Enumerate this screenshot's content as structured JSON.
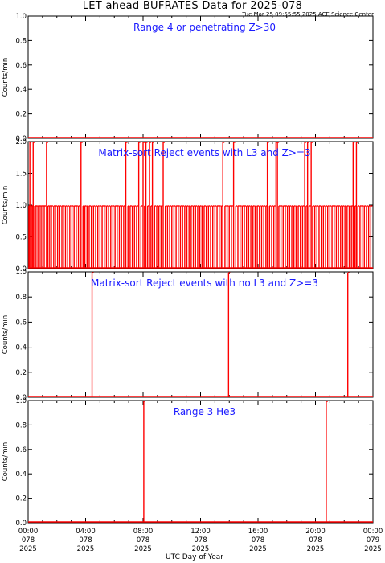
{
  "title": "LET ahead BUFRATES Data for 2025-078",
  "subtitle": "Tue Mar 25 09:55:55 2025 ACE Science Center",
  "xlabel": "UTC Day of Year",
  "colors": {
    "axes": "#000000",
    "data": "#ff0000",
    "panel_label": "#1a1aff"
  },
  "x_ticks": [
    {
      "time": "00:00",
      "doy": "078",
      "year": "2025"
    },
    {
      "time": "04:00",
      "doy": "078",
      "year": "2025"
    },
    {
      "time": "08:00",
      "doy": "078",
      "year": "2025"
    },
    {
      "time": "12:00",
      "doy": "078",
      "year": "2025"
    },
    {
      "time": "16:00",
      "doy": "078",
      "year": "2025"
    },
    {
      "time": "20:00",
      "doy": "078",
      "year": "2025"
    },
    {
      "time": "00:00",
      "doy": "079",
      "year": "2025"
    }
  ],
  "chart_data": [
    {
      "type": "line",
      "title": "Range 4 or  penetrating Z>30",
      "ylabel": "Counts/min",
      "xlim_hours": [
        0,
        24
      ],
      "ylim": [
        0,
        1.0
      ],
      "yticks": [
        0.0,
        0.2,
        0.4,
        0.6,
        0.8,
        1.0
      ],
      "ytick_labels": [
        "0.0",
        "0.2",
        "0.4",
        "0.6",
        "0.8",
        "1.0"
      ],
      "series": [
        {
          "baseline": 0,
          "spikes": []
        }
      ]
    },
    {
      "type": "line",
      "title": "Matrix-sort Reject events with L3 and Z>=3",
      "ylabel": "Counts/min",
      "xlim_hours": [
        0,
        24
      ],
      "ylim": [
        0,
        2.0
      ],
      "yticks": [
        0.0,
        0.5,
        1.0,
        1.5,
        2.0
      ],
      "ytick_labels": [
        "0.0",
        "0.5",
        "1.0",
        "1.5",
        "2.0"
      ],
      "series": [
        {
          "baseline": 0,
          "spikes": [
            [
              0.05,
              1
            ],
            [
              0.12,
              2
            ],
            [
              0.2,
              1
            ],
            [
              0.28,
              1
            ],
            [
              0.35,
              2
            ],
            [
              0.45,
              1
            ],
            [
              0.55,
              1
            ],
            [
              0.68,
              1
            ],
            [
              0.78,
              1
            ],
            [
              0.9,
              1
            ],
            [
              1.02,
              1
            ],
            [
              1.12,
              1
            ],
            [
              1.28,
              2
            ],
            [
              1.38,
              1
            ],
            [
              1.5,
              1
            ],
            [
              1.62,
              1
            ],
            [
              1.78,
              1
            ],
            [
              1.9,
              1
            ],
            [
              2.05,
              1
            ],
            [
              2.2,
              1
            ],
            [
              2.35,
              1
            ],
            [
              2.45,
              1
            ],
            [
              2.6,
              1
            ],
            [
              2.75,
              1
            ],
            [
              2.9,
              1
            ],
            [
              3.05,
              1
            ],
            [
              3.2,
              1
            ],
            [
              3.35,
              1
            ],
            [
              3.5,
              1
            ],
            [
              3.68,
              2
            ],
            [
              3.82,
              1
            ],
            [
              3.95,
              1
            ],
            [
              4.1,
              1
            ],
            [
              4.25,
              1
            ],
            [
              4.4,
              1
            ],
            [
              4.55,
              1
            ],
            [
              4.7,
              1
            ],
            [
              4.85,
              1
            ],
            [
              5.0,
              1
            ],
            [
              5.15,
              1
            ],
            [
              5.3,
              1
            ],
            [
              5.45,
              1
            ],
            [
              5.6,
              1
            ],
            [
              5.75,
              1
            ],
            [
              5.9,
              1
            ],
            [
              6.05,
              1
            ],
            [
              6.2,
              1
            ],
            [
              6.35,
              1
            ],
            [
              6.5,
              1
            ],
            [
              6.65,
              1
            ],
            [
              6.8,
              2
            ],
            [
              6.95,
              1
            ],
            [
              7.1,
              1
            ],
            [
              7.25,
              1
            ],
            [
              7.4,
              1
            ],
            [
              7.55,
              1
            ],
            [
              7.7,
              2
            ],
            [
              7.85,
              1
            ],
            [
              8.0,
              2
            ],
            [
              8.1,
              1
            ],
            [
              8.2,
              2
            ],
            [
              8.32,
              1
            ],
            [
              8.45,
              2
            ],
            [
              8.55,
              1
            ],
            [
              8.65,
              2
            ],
            [
              8.8,
              1
            ],
            [
              8.95,
              1
            ],
            [
              9.1,
              1
            ],
            [
              9.25,
              1
            ],
            [
              9.4,
              2
            ],
            [
              9.55,
              1
            ],
            [
              9.7,
              1
            ],
            [
              9.85,
              1
            ],
            [
              10.0,
              1
            ],
            [
              10.15,
              1
            ],
            [
              10.3,
              1
            ],
            [
              10.45,
              1
            ],
            [
              10.6,
              1
            ],
            [
              10.75,
              1
            ],
            [
              10.9,
              1
            ],
            [
              11.05,
              1
            ],
            [
              11.2,
              1
            ],
            [
              11.35,
              1
            ],
            [
              11.5,
              1
            ],
            [
              11.65,
              1
            ],
            [
              11.8,
              1
            ],
            [
              11.95,
              1
            ],
            [
              12.1,
              1
            ],
            [
              12.25,
              1
            ],
            [
              12.4,
              1
            ],
            [
              12.55,
              1
            ],
            [
              12.7,
              1
            ],
            [
              12.85,
              1
            ],
            [
              13.0,
              1
            ],
            [
              13.15,
              1
            ],
            [
              13.3,
              1
            ],
            [
              13.45,
              1
            ],
            [
              13.55,
              2
            ],
            [
              13.7,
              1
            ],
            [
              13.85,
              1
            ],
            [
              14.0,
              1
            ],
            [
              14.15,
              1
            ],
            [
              14.3,
              2
            ],
            [
              14.45,
              1
            ],
            [
              14.6,
              1
            ],
            [
              14.75,
              1
            ],
            [
              14.9,
              1
            ],
            [
              15.05,
              1
            ],
            [
              15.2,
              1
            ],
            [
              15.35,
              1
            ],
            [
              15.5,
              1
            ],
            [
              15.65,
              1
            ],
            [
              15.8,
              1
            ],
            [
              15.95,
              1
            ],
            [
              16.1,
              1
            ],
            [
              16.25,
              1
            ],
            [
              16.4,
              1
            ],
            [
              16.55,
              1
            ],
            [
              16.65,
              2
            ],
            [
              16.8,
              1
            ],
            [
              16.95,
              1
            ],
            [
              17.1,
              1
            ],
            [
              17.25,
              2
            ],
            [
              17.35,
              2
            ],
            [
              17.45,
              1
            ],
            [
              17.6,
              1
            ],
            [
              17.75,
              1
            ],
            [
              17.9,
              1
            ],
            [
              18.05,
              1
            ],
            [
              18.2,
              1
            ],
            [
              18.35,
              1
            ],
            [
              18.5,
              1
            ],
            [
              18.65,
              1
            ],
            [
              18.8,
              1
            ],
            [
              18.95,
              1
            ],
            [
              19.1,
              1
            ],
            [
              19.25,
              2
            ],
            [
              19.35,
              1
            ],
            [
              19.45,
              2
            ],
            [
              19.55,
              1
            ],
            [
              19.7,
              2
            ],
            [
              19.8,
              1
            ],
            [
              19.95,
              1
            ],
            [
              20.1,
              1
            ],
            [
              20.25,
              1
            ],
            [
              20.4,
              1
            ],
            [
              20.55,
              1
            ],
            [
              20.7,
              1
            ],
            [
              20.85,
              1
            ],
            [
              21.0,
              1
            ],
            [
              21.15,
              1
            ],
            [
              21.3,
              1
            ],
            [
              21.45,
              1
            ],
            [
              21.6,
              1
            ],
            [
              21.75,
              1
            ],
            [
              21.9,
              1
            ],
            [
              22.05,
              1
            ],
            [
              22.2,
              1
            ],
            [
              22.35,
              1
            ],
            [
              22.5,
              1
            ],
            [
              22.62,
              2
            ],
            [
              22.75,
              1
            ],
            [
              22.85,
              2
            ],
            [
              22.95,
              1
            ],
            [
              23.1,
              1
            ],
            [
              23.25,
              1
            ],
            [
              23.4,
              1
            ],
            [
              23.55,
              1
            ],
            [
              23.7,
              1
            ],
            [
              23.85,
              1
            ]
          ]
        }
      ]
    },
    {
      "type": "line",
      "title": "Matrix-sort Reject events with no L3 and Z>=3",
      "ylabel": "Counts/min",
      "xlim_hours": [
        0,
        24
      ],
      "ylim": [
        0,
        1.0
      ],
      "yticks": [
        0.0,
        0.2,
        0.4,
        0.6,
        0.8,
        1.0
      ],
      "ytick_labels": [
        "0.0",
        "0.2",
        "0.4",
        "0.6",
        "0.8",
        "1.0"
      ],
      "series": [
        {
          "baseline": 0,
          "spikes": [
            [
              4.45,
              1
            ],
            [
              13.95,
              1
            ],
            [
              22.25,
              1
            ]
          ]
        }
      ]
    },
    {
      "type": "line",
      "title": "Range 3 He3",
      "ylabel": "Counts/min",
      "xlim_hours": [
        0,
        24
      ],
      "ylim": [
        0,
        1.0
      ],
      "yticks": [
        0.0,
        0.2,
        0.4,
        0.6,
        0.8,
        1.0
      ],
      "ytick_labels": [
        "0.0",
        "0.2",
        "0.4",
        "0.6",
        "0.8",
        "1.0"
      ],
      "series": [
        {
          "baseline": 0,
          "spikes": [
            [
              8.05,
              1
            ],
            [
              20.75,
              1
            ]
          ]
        }
      ]
    }
  ]
}
